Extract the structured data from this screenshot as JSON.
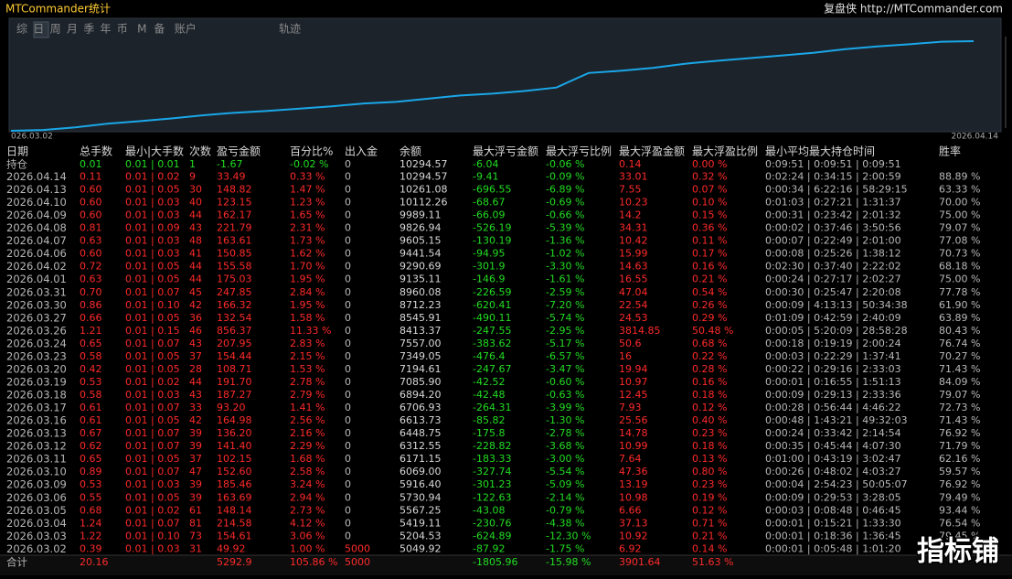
{
  "header": {
    "title": "MTCommander统计",
    "site": "复盘侠 http://MTCommander.com",
    "tabs": [
      "综",
      "日",
      "周",
      "月",
      "季",
      "年",
      "币",
      "M",
      "备",
      "账户"
    ],
    "extra_tab": "轨迹"
  },
  "equity_curve": {
    "start_label": "026.03.02",
    "end_label": "2026.04.14",
    "values": [
      5000,
      5049.92,
      5204.53,
      5419.11,
      5567.25,
      5730.94,
      5916.4,
      6069.0,
      6171.15,
      6312.55,
      6448.75,
      6613.73,
      6706.93,
      6894.2,
      7085.9,
      7194.61,
      7349.05,
      7557.0,
      8413.37,
      8545.91,
      8712.23,
      8960.08,
      9135.11,
      9290.69,
      9441.54,
      9605.15,
      9826.94,
      9989.11,
      10112.26,
      10261.08,
      10294.57
    ]
  },
  "table": {
    "columns": [
      "日期",
      "总手数",
      "最小|大手数",
      "次数",
      "盈亏金额",
      "百分比%",
      "出入金",
      "余额",
      "最大浮亏金额",
      "最大浮亏比例",
      "最大浮盈金额",
      "最大浮盈比例",
      "最小平均最大持仓时间",
      "胜率"
    ],
    "position_row": [
      "持仓",
      "0.01",
      "0.01 | 0.01",
      "1",
      "-1.67",
      "-0.02 %",
      "0",
      "10294.57",
      "-6.04",
      "-0.06 %",
      "0.14",
      "0.00 %",
      "0:09:51 | 0:09:51 | 0:09:51",
      null
    ],
    "rows": [
      [
        "2026.04.14",
        "0.11",
        "0.01 | 0.02",
        "9",
        "33.49",
        "0.33 %",
        "0",
        "10294.57",
        "-9.41",
        "-0.09 %",
        "33.01",
        "0.32 %",
        "0:02:24 | 0:34:15 | 2:00:59",
        "88.89 %"
      ],
      [
        "2026.04.13",
        "0.60",
        "0.01 | 0.05",
        "30",
        "148.82",
        "1.47 %",
        "0",
        "10261.08",
        "-696.55",
        "-6.89 %",
        "7.55",
        "0.07 %",
        "0:00:34 | 6:22:16 | 58:29:15",
        "63.33 %"
      ],
      [
        "2026.04.10",
        "0.60",
        "0.01 | 0.03",
        "40",
        "123.15",
        "1.23 %",
        "0",
        "10112.26",
        "-68.67",
        "-0.69 %",
        "10.23",
        "0.10 %",
        "0:01:03 | 0:27:21 | 1:31:37",
        "70.00 %"
      ],
      [
        "2026.04.09",
        "0.60",
        "0.01 | 0.03",
        "44",
        "162.17",
        "1.65 %",
        "0",
        "9989.11",
        "-66.09",
        "-0.66 %",
        "14.2",
        "0.15 %",
        "0:00:31 | 0:23:42 | 2:01:32",
        "75.00 %"
      ],
      [
        "2026.04.08",
        "0.81",
        "0.01 | 0.09",
        "43",
        "221.79",
        "2.31 %",
        "0",
        "9826.94",
        "-526.19",
        "-5.39 %",
        "34.31",
        "0.36 %",
        "0:00:02 | 0:37:46 | 3:50:56",
        "79.07 %"
      ],
      [
        "2026.04.07",
        "0.63",
        "0.01 | 0.03",
        "48",
        "163.61",
        "1.73 %",
        "0",
        "9605.15",
        "-130.19",
        "-1.36 %",
        "10.42",
        "0.11 %",
        "0:00:07 | 0:22:49 | 2:01:00",
        "77.08 %"
      ],
      [
        "2026.04.06",
        "0.60",
        "0.01 | 0.03",
        "41",
        "150.85",
        "1.62 %",
        "0",
        "9441.54",
        "-94.95",
        "-1.02 %",
        "15.99",
        "0.17 %",
        "0:00:08 | 0:25:26 | 1:38:12",
        "70.73 %"
      ],
      [
        "2026.04.02",
        "0.72",
        "0.01 | 0.05",
        "44",
        "155.58",
        "1.70 %",
        "0",
        "9290.69",
        "-301.9",
        "-3.30 %",
        "14.63",
        "0.16 %",
        "0:02:30 | 0:37:40 | 2:22:02",
        "68.18 %"
      ],
      [
        "2026.04.01",
        "0.63",
        "0.01 | 0.05",
        "44",
        "175.03",
        "1.95 %",
        "0",
        "9135.11",
        "-146.9",
        "-1.61 %",
        "16.55",
        "0.21 %",
        "0:00:24 | 0:27:17 | 2:02:27",
        "75.00 %"
      ],
      [
        "2026.03.31",
        "0.70",
        "0.01 | 0.07",
        "45",
        "247.85",
        "2.84 %",
        "0",
        "8960.08",
        "-226.59",
        "-2.59 %",
        "47.04",
        "0.54 %",
        "0:00:30 | 0:25:47 | 2:20:08",
        "77.78 %"
      ],
      [
        "2026.03.30",
        "0.86",
        "0.01 | 0.10",
        "42",
        "166.32",
        "1.95 %",
        "0",
        "8712.23",
        "-620.41",
        "-7.20 %",
        "22.54",
        "0.26 %",
        "0:00:09 | 4:13:13 | 50:34:38",
        "61.90 %"
      ],
      [
        "2026.03.27",
        "0.66",
        "0.01 | 0.05",
        "36",
        "132.54",
        "1.58 %",
        "0",
        "8545.91",
        "-490.11",
        "-5.74 %",
        "24.53",
        "0.29 %",
        "0:01:09 | 0:42:59 | 2:40:09",
        "63.89 %"
      ],
      [
        "2026.03.26",
        "1.21",
        "0.01 | 0.15",
        "46",
        "856.37",
        "11.33 %",
        "0",
        "8413.37",
        "-247.55",
        "-2.95 %",
        "3814.85",
        "50.48 %",
        "0:00:05 | 5:20:09 | 28:58:28",
        "80.43 %"
      ],
      [
        "2026.03.24",
        "0.65",
        "0.01 | 0.07",
        "43",
        "207.95",
        "2.83 %",
        "0",
        "7557.00",
        "-383.62",
        "-5.17 %",
        "50.6",
        "0.68 %",
        "0:00:18 | 0:19:19 | 2:00:24",
        "76.74 %"
      ],
      [
        "2026.03.23",
        "0.58",
        "0.01 | 0.05",
        "37",
        "154.44",
        "2.15 %",
        "0",
        "7349.05",
        "-476.4",
        "-6.57 %",
        "16",
        "0.22 %",
        "0:00:03 | 0:22:29 | 1:37:41",
        "70.27 %"
      ],
      [
        "2026.03.20",
        "0.42",
        "0.01 | 0.05",
        "28",
        "108.71",
        "1.53 %",
        "0",
        "7194.61",
        "-247.67",
        "-3.47 %",
        "19.94",
        "0.28 %",
        "0:00:22 | 0:29:16 | 2:33:03",
        "71.43 %"
      ],
      [
        "2026.03.19",
        "0.53",
        "0.01 | 0.02",
        "44",
        "191.70",
        "2.78 %",
        "0",
        "7085.90",
        "-42.52",
        "-0.60 %",
        "10.97",
        "0.16 %",
        "0:00:01 | 0:16:55 | 1:51:13",
        "84.09 %"
      ],
      [
        "2026.03.18",
        "0.58",
        "0.01 | 0.03",
        "43",
        "187.27",
        "2.79 %",
        "0",
        "6894.20",
        "-42.48",
        "-0.63 %",
        "12.45",
        "0.18 %",
        "0:00:09 | 0:29:13 | 2:33:36",
        "79.07 %"
      ],
      [
        "2026.03.17",
        "0.61",
        "0.01 | 0.07",
        "33",
        "93.20",
        "1.41 %",
        "0",
        "6706.93",
        "-264.31",
        "-3.99 %",
        "7.93",
        "0.12 %",
        "0:00:28 | 0:56:44 | 4:46:22",
        "72.73 %"
      ],
      [
        "2026.03.16",
        "0.61",
        "0.01 | 0.05",
        "42",
        "164.98",
        "2.56 %",
        "0",
        "6613.73",
        "-85.82",
        "-1.30 %",
        "25.56",
        "0.40 %",
        "0:00:48 | 1:43:21 | 49:32:03",
        "71.43 %"
      ],
      [
        "2026.03.13",
        "0.67",
        "0.01 | 0.07",
        "39",
        "136.20",
        "2.16 %",
        "0",
        "6448.75",
        "-175.8",
        "-2.78 %",
        "14.78",
        "0.23 %",
        "0:00:24 | 0:33:42 | 2:14:54",
        "76.92 %"
      ],
      [
        "2026.03.12",
        "0.62",
        "0.01 | 0.07",
        "39",
        "141.40",
        "2.29 %",
        "0",
        "6312.55",
        "-228.82",
        "-3.68 %",
        "10.99",
        "0.18 %",
        "0:00:35 | 0:45:44 | 4:07:30",
        "71.79 %"
      ],
      [
        "2026.03.11",
        "0.65",
        "0.01 | 0.05",
        "37",
        "102.15",
        "1.68 %",
        "0",
        "6171.15",
        "-183.33",
        "-3.00 %",
        "7.64",
        "0.13 %",
        "0:01:00 | 0:43:19 | 3:02:47",
        "62.16 %"
      ],
      [
        "2026.03.10",
        "0.89",
        "0.01 | 0.07",
        "47",
        "152.60",
        "2.58 %",
        "0",
        "6069.00",
        "-327.74",
        "-5.54 %",
        "47.36",
        "0.80 %",
        "0:00:26 | 0:48:02 | 4:03:27",
        "59.57 %"
      ],
      [
        "2026.03.09",
        "0.53",
        "0.01 | 0.03",
        "39",
        "185.46",
        "3.24 %",
        "0",
        "5916.40",
        "-301.23",
        "-5.09 %",
        "13.19",
        "0.23 %",
        "0:00:04 | 2:54:23 | 50:05:07",
        "76.92 %"
      ],
      [
        "2026.03.06",
        "0.55",
        "0.01 | 0.05",
        "39",
        "163.69",
        "2.94 %",
        "0",
        "5730.94",
        "-122.63",
        "-2.14 %",
        "10.98",
        "0.19 %",
        "0:00:09 | 0:29:53 | 3:28:05",
        "79.49 %"
      ],
      [
        "2026.03.05",
        "0.68",
        "0.01 | 0.02",
        "61",
        "148.14",
        "2.73 %",
        "0",
        "5567.25",
        "-43.08",
        "-0.79 %",
        "6.66",
        "0.12 %",
        "0:00:03 | 0:08:48 | 0:46:45",
        "93.44 %"
      ],
      [
        "2026.03.04",
        "1.24",
        "0.01 | 0.07",
        "81",
        "214.58",
        "4.12 %",
        "0",
        "5419.11",
        "-230.76",
        "-4.38 %",
        "37.13",
        "0.71 %",
        "0:00:01 | 0:15:21 | 1:33:30",
        "76.54 %"
      ],
      [
        "2026.03.03",
        "1.22",
        "0.01 | 0.10",
        "73",
        "154.61",
        "3.06 %",
        "0",
        "5204.53",
        "-624.89",
        "-12.30 %",
        "10.92",
        "0.21 %",
        "0:00:01 | 0:18:36 | 1:36:45",
        "79.45 %"
      ],
      [
        "2026.03.02",
        "0.39",
        "0.01 | 0.03",
        "31",
        "49.92",
        "1.00 %",
        "5000",
        "5049.92",
        "-87.92",
        "-1.75 %",
        "6.92",
        "0.14 %",
        "0:00:01 | 0:05:48 | 1:01:20",
        null
      ]
    ],
    "total_row": [
      "合计",
      "20.16",
      null,
      null,
      "5292.9",
      "105.86 %",
      "5000",
      null,
      "-1805.96",
      "-15.98 %",
      "3901.64",
      "51.63 %",
      null,
      null
    ]
  },
  "watermark": "指标铺"
}
